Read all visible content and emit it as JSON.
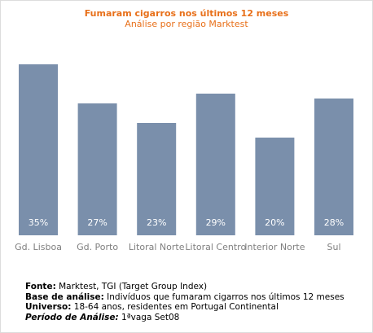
{
  "chart_data": {
    "type": "bar",
    "title": "Fumaram cigarros nos últimos 12 meses",
    "subtitle": "Análise por região Marktest",
    "categories": [
      "Gd. Lisboa",
      "Gd. Porto",
      "Litoral Norte",
      "Litoral Centro",
      "Interior Norte",
      "Sul"
    ],
    "values": [
      35,
      27,
      23,
      29,
      20,
      28
    ],
    "value_labels": [
      "35%",
      "27%",
      "23%",
      "29%",
      "20%",
      "28%"
    ],
    "bar_color": "#7a8fab",
    "label_color": "#ffffff",
    "ylim": [
      0,
      40
    ],
    "grid": false
  },
  "footnotes": {
    "fonte_label": "Fonte:",
    "fonte_value": "Marktest, TGI (Target Group Index)",
    "base_label": "Base de análise:",
    "base_value": "Indivíduos que fumaram cigarros nos últimos 12 meses",
    "universo_label": "Universo:",
    "universo_value": "18-64 anos, residentes em Portugal Continental",
    "periodo_label": "Período de Análise:",
    "periodo_value": "1ªvaga Set08"
  },
  "colors": {
    "title": "#e8701a",
    "axis_text": "#808080"
  }
}
